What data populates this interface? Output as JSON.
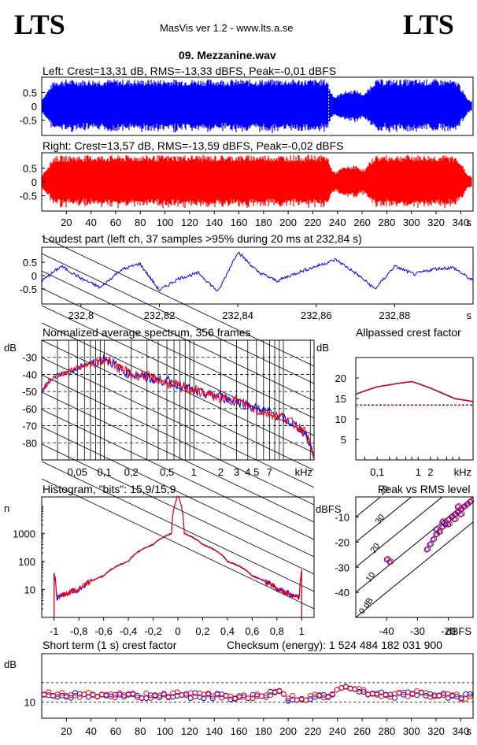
{
  "header": {
    "logo_left": "LTS",
    "logo_right": "LTS",
    "app_title": "MasVis ver 1.2 - www.lts.a.se",
    "file_name": "09. Mezzanine.wav"
  },
  "colors": {
    "left": "#0000ff",
    "right": "#ff0000",
    "grid": "#000000"
  },
  "chart_data": [
    {
      "id": "waveform-left",
      "type": "area",
      "title": "Left: Crest=13,31 dB, RMS=-13,33 dBFS, Peak=-0,01 dBFS",
      "ylim": [
        -1,
        1
      ],
      "yticks": [
        "0.5",
        "0",
        "-0.5"
      ],
      "xlim": [
        0,
        350
      ],
      "envelope": {
        "x": [
          0,
          10,
          20,
          40,
          60,
          80,
          100,
          120,
          140,
          160,
          180,
          200,
          220,
          232,
          234,
          238,
          245,
          255,
          262,
          270,
          280,
          300,
          320,
          330,
          338,
          345,
          350
        ],
        "amplitude": [
          0.25,
          0.95,
          0.97,
          0.97,
          0.98,
          0.97,
          0.98,
          0.98,
          0.98,
          0.97,
          0.98,
          0.98,
          0.98,
          0.98,
          0.6,
          0.35,
          0.55,
          0.6,
          0.45,
          0.97,
          0.98,
          0.98,
          0.98,
          0.97,
          0.9,
          0.3,
          0.15
        ]
      },
      "marker_x": 232.84,
      "series_color": "#0000ff"
    },
    {
      "id": "waveform-right",
      "type": "area",
      "title": "Right: Crest=13,57 dB, RMS=-13,59 dBFS, Peak=-0,02 dBFS",
      "ylim": [
        -1,
        1
      ],
      "yticks": [
        "0.5",
        "0",
        "-0.5"
      ],
      "xlim": [
        0,
        350
      ],
      "xticks": [
        "20",
        "40",
        "60",
        "80",
        "100",
        "120",
        "140",
        "160",
        "180",
        "200",
        "220",
        "240",
        "260",
        "280",
        "300",
        "320",
        "340"
      ],
      "xunit": "s",
      "envelope": {
        "x": [
          0,
          10,
          20,
          40,
          60,
          80,
          100,
          120,
          140,
          160,
          180,
          200,
          220,
          232,
          234,
          238,
          245,
          255,
          262,
          270,
          280,
          300,
          320,
          330,
          338,
          345,
          350
        ],
        "amplitude": [
          0.25,
          0.95,
          0.96,
          0.97,
          0.97,
          0.97,
          0.97,
          0.98,
          0.97,
          0.97,
          0.98,
          0.97,
          0.98,
          0.97,
          0.6,
          0.35,
          0.55,
          0.6,
          0.45,
          0.97,
          0.97,
          0.98,
          0.97,
          0.97,
          0.9,
          0.3,
          0.15
        ]
      },
      "series_color": "#ff0000"
    },
    {
      "id": "loudest-part",
      "type": "line",
      "title": "Loudest part (left  ch, 37 samples >95% during 20 ms at 232,84 s)",
      "ylim": [
        -1,
        1
      ],
      "yticks": [
        "0.5",
        "0",
        "-0.5"
      ],
      "xlim": [
        232.79,
        232.9
      ],
      "xticks": [
        "232,8",
        "232,82",
        "232,84",
        "232,86",
        "232,88"
      ],
      "xunit": "s",
      "x": [
        232.79,
        232.795,
        232.8,
        232.805,
        232.81,
        232.815,
        232.82,
        232.825,
        232.83,
        232.835,
        232.84,
        232.845,
        232.85,
        232.855,
        232.86,
        232.865,
        232.87,
        232.875,
        232.88,
        232.885,
        232.89,
        232.895,
        232.9
      ],
      "y": [
        -0.2,
        0.35,
        -0.1,
        -0.45,
        0.2,
        0.45,
        -0.55,
        -0.1,
        0.1,
        -0.6,
        0.9,
        0.15,
        -0.2,
        0.1,
        0.35,
        0.6,
        0.1,
        -0.5,
        0.35,
        0.05,
        0.25,
        0.3,
        -0.2
      ],
      "series_color": "#0000ff"
    },
    {
      "id": "spectrum",
      "type": "line",
      "title": "Normalized average spectrum, 356 frames",
      "ylabel": "dB",
      "yticks": [
        "-30",
        "-40",
        "-50",
        "-60",
        "-70",
        "-80"
      ],
      "ylim": [
        -90,
        -20
      ],
      "xscale": "log",
      "xlim": [
        0.02,
        22
      ],
      "xticks": [
        "0,05",
        "0,1",
        "0,2",
        "0,5",
        "1",
        "2",
        "3",
        "4",
        "5",
        "7"
      ],
      "xunit": "kHz",
      "series": [
        {
          "name": "L",
          "color": "#0000ff",
          "x": [
            0.02,
            0.025,
            0.03,
            0.04,
            0.05,
            0.06,
            0.08,
            0.1,
            0.13,
            0.16,
            0.2,
            0.3,
            0.5,
            0.7,
            1,
            1.5,
            2,
            3,
            4,
            5,
            7,
            10,
            14,
            18,
            22
          ],
          "y": [
            -50,
            -43,
            -40,
            -39,
            -37,
            -34,
            -33,
            -30,
            -34,
            -38,
            -40,
            -42,
            -44,
            -46,
            -50,
            -52,
            -53,
            -56,
            -58,
            -60,
            -62,
            -66,
            -70,
            -75,
            -88
          ]
        },
        {
          "name": "R",
          "color": "#ff0000",
          "x": [
            0.02,
            0.025,
            0.03,
            0.04,
            0.05,
            0.06,
            0.08,
            0.1,
            0.13,
            0.16,
            0.2,
            0.3,
            0.5,
            0.7,
            1,
            1.5,
            2,
            3,
            4,
            5,
            7,
            10,
            14,
            18,
            22
          ],
          "y": [
            -50,
            -43,
            -41,
            -38,
            -36,
            -35,
            -33,
            -31,
            -35,
            -37,
            -40,
            -41,
            -45,
            -47,
            -49,
            -52,
            -54,
            -55,
            -58,
            -61,
            -63,
            -65,
            -70,
            -74,
            -90
          ]
        }
      ]
    },
    {
      "id": "allpass-crest",
      "type": "line",
      "title": "Allpassed crest factor",
      "ylabel": "dB",
      "yticks": [
        "20",
        "15",
        "10",
        "5"
      ],
      "ylim": [
        0,
        25
      ],
      "xscale": "log",
      "xlim": [
        0.03,
        22
      ],
      "xticks": [
        "0,1",
        "1",
        "2"
      ],
      "xunit": "kHz",
      "reference_level": 13.4,
      "series": [
        {
          "name": "L",
          "color": "#0000ff",
          "x": [
            0.03,
            0.05,
            0.1,
            0.3,
            0.7,
            1,
            2,
            4,
            8,
            15,
            22
          ],
          "y": [
            16,
            16.8,
            17.8,
            18.6,
            19.1,
            18.6,
            17.5,
            16.2,
            14.9,
            14.5,
            14.2
          ]
        },
        {
          "name": "R",
          "color": "#ff0000",
          "x": [
            0.03,
            0.05,
            0.1,
            0.3,
            0.7,
            1,
            2,
            4,
            8,
            15,
            22
          ],
          "y": [
            16.1,
            16.9,
            17.9,
            18.7,
            19.2,
            18.7,
            17.6,
            16.3,
            15.0,
            14.6,
            14.3
          ]
        }
      ]
    },
    {
      "id": "histogram",
      "type": "line",
      "title": "Histogram, \"bits\": 15,9/15,9",
      "ylabel": "n",
      "yscale": "log",
      "ylim": [
        1,
        20000
      ],
      "yticks": [
        "1000",
        "100",
        "10"
      ],
      "xlim": [
        -1.1,
        1.1
      ],
      "xticks": [
        "-1",
        "-0,8",
        "-0,6",
        "-0,4",
        "-0,2",
        "0",
        "0,2",
        "0,4",
        "0,6",
        "0,8",
        "1"
      ],
      "x": [
        -1.0,
        -0.98,
        -0.9,
        -0.8,
        -0.6,
        -0.4,
        -0.2,
        -0.05,
        0,
        0.05,
        0.2,
        0.4,
        0.6,
        0.8,
        0.9,
        0.98,
        1.0
      ],
      "y": [
        40,
        5,
        7,
        10,
        30,
        100,
        400,
        1000,
        20000,
        1000,
        400,
        100,
        30,
        10,
        7,
        5,
        40
      ],
      "series": [
        {
          "name": "L",
          "color": "#0000ff"
        },
        {
          "name": "R",
          "color": "#ff0000"
        }
      ]
    },
    {
      "id": "peak-vs-rms",
      "type": "scatter",
      "title": "Peak vs RMS level",
      "ylabel": "dBFS",
      "yticks": [
        "-10",
        "-20",
        "-30",
        "-40"
      ],
      "ylim": [
        -50,
        -2
      ],
      "xlabel": "dBFS",
      "xticks": [
        "-40",
        "-30",
        "-20"
      ],
      "xlim": [
        -50,
        -12
      ],
      "crest_lines": [
        "0 dB",
        "10",
        "20",
        "30",
        "40"
      ],
      "points": [
        {
          "x": -27,
          "y": -23
        },
        {
          "x": -26,
          "y": -21
        },
        {
          "x": -25,
          "y": -19
        },
        {
          "x": -24,
          "y": -17
        },
        {
          "x": -23,
          "y": -16
        },
        {
          "x": -22,
          "y": -14
        },
        {
          "x": -21,
          "y": -13
        },
        {
          "x": -20,
          "y": -11
        },
        {
          "x": -19,
          "y": -10
        },
        {
          "x": -18,
          "y": -9
        },
        {
          "x": -17,
          "y": -8
        },
        {
          "x": -16,
          "y": -7
        },
        {
          "x": -15,
          "y": -6
        },
        {
          "x": -14,
          "y": -5
        },
        {
          "x": -22,
          "y": -12
        },
        {
          "x": -20,
          "y": -13
        },
        {
          "x": -18,
          "y": -11
        },
        {
          "x": -16,
          "y": -9
        },
        {
          "x": -24,
          "y": -15
        },
        {
          "x": -17,
          "y": -6
        },
        {
          "x": -13,
          "y": -4
        },
        {
          "x": -40,
          "y": -27
        },
        {
          "x": -39,
          "y": -28
        }
      ]
    },
    {
      "id": "short-term-crest",
      "type": "scatter",
      "title": "Short term (1 s) crest factor",
      "annotation": "Checksum (energy):  1 524 484 182 031 900",
      "ylabel": "dB",
      "ytick": "10",
      "ylim": [
        5,
        25
      ],
      "xlim": [
        0,
        350
      ],
      "xticks": [
        "20",
        "40",
        "60",
        "80",
        "100",
        "120",
        "140",
        "160",
        "180",
        "200",
        "220",
        "240",
        "260",
        "280",
        "300",
        "320",
        "340"
      ],
      "xunit": "s",
      "series": [
        {
          "name": "L",
          "color": "#0000ff",
          "x": [
            0,
            20,
            40,
            60,
            80,
            100,
            120,
            140,
            160,
            180,
            190,
            200,
            220,
            235,
            245,
            255,
            265,
            280,
            300,
            320,
            340,
            348
          ],
          "y": [
            12.5,
            12.0,
            12.2,
            12.0,
            11.8,
            12.2,
            12.0,
            11.8,
            11.6,
            12.0,
            13.5,
            11.0,
            11.2,
            12.5,
            15.5,
            14.0,
            12.8,
            12.0,
            12.5,
            12.0,
            11.5,
            12.0
          ]
        },
        {
          "name": "R",
          "color": "#ff0000",
          "x": [
            0,
            20,
            40,
            60,
            80,
            100,
            120,
            140,
            160,
            180,
            190,
            200,
            220,
            235,
            245,
            255,
            265,
            280,
            300,
            320,
            340,
            348
          ],
          "y": [
            12.6,
            12.1,
            12.3,
            12.1,
            11.9,
            12.3,
            12.1,
            11.9,
            11.7,
            12.1,
            13.6,
            11.1,
            11.3,
            12.6,
            15.6,
            14.1,
            12.9,
            12.1,
            12.6,
            12.1,
            11.6,
            12.1
          ]
        }
      ]
    }
  ]
}
